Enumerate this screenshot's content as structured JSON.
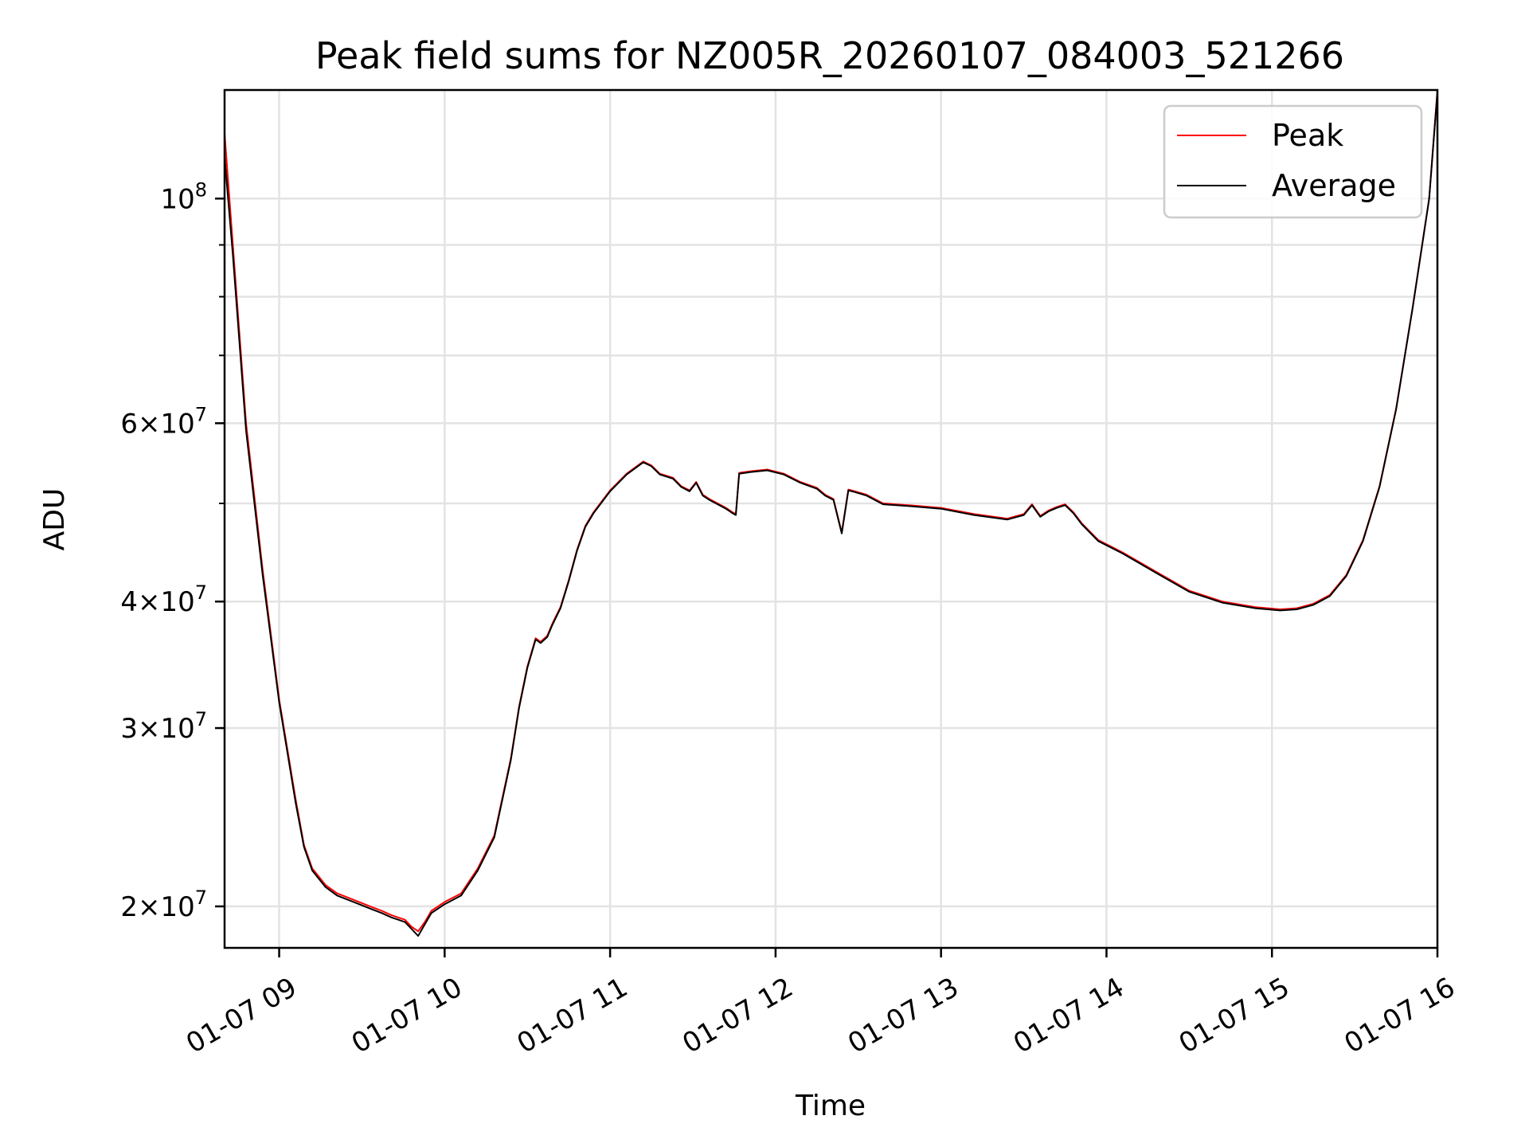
{
  "chart_data": {
    "type": "line",
    "title": "Peak field sums for NZ005R_20260107_084003_521266",
    "xlabel": "Time",
    "ylabel": "ADU",
    "yscale": "log",
    "xlim": [
      8.67,
      16.0
    ],
    "ylim": [
      18200000,
      128000000
    ],
    "grid": true,
    "legend_position": "top-right",
    "x_ticks": [
      {
        "value": 9,
        "label": "01-07 09"
      },
      {
        "value": 10,
        "label": "01-07 10"
      },
      {
        "value": 11,
        "label": "01-07 11"
      },
      {
        "value": 12,
        "label": "01-07 12"
      },
      {
        "value": 13,
        "label": "01-07 13"
      },
      {
        "value": 14,
        "label": "01-07 14"
      },
      {
        "value": 15,
        "label": "01-07 15"
      },
      {
        "value": 16,
        "label": "01-07 16"
      }
    ],
    "y_ticks": [
      {
        "value": 20000000,
        "mantissa": "2",
        "exp": "7"
      },
      {
        "value": 30000000,
        "mantissa": "3",
        "exp": "7"
      },
      {
        "value": 40000000,
        "mantissa": "4",
        "exp": "7"
      },
      {
        "value": 60000000,
        "mantissa": "6",
        "exp": "7"
      },
      {
        "value": 100000000,
        "mantissa": "",
        "exp": "8"
      }
    ],
    "y_minor_ticks": [
      50000000,
      70000000,
      80000000,
      90000000
    ],
    "series": [
      {
        "name": "Peak",
        "color": "#ff0000",
        "x": [
          8.67,
          8.72,
          8.8,
          8.9,
          9.0,
          9.1,
          9.15,
          9.2,
          9.28,
          9.35,
          9.45,
          9.55,
          9.62,
          9.68,
          9.72,
          9.76,
          9.8,
          9.84,
          9.88,
          9.92,
          10.0,
          10.1,
          10.2,
          10.3,
          10.4,
          10.45,
          10.5,
          10.55,
          10.58,
          10.62,
          10.65,
          10.7,
          10.75,
          10.8,
          10.85,
          10.9,
          11.0,
          11.1,
          11.2,
          11.25,
          11.3,
          11.38,
          11.43,
          11.48,
          11.52,
          11.56,
          11.6,
          11.65,
          11.7,
          11.74,
          11.76,
          11.78,
          11.85,
          11.95,
          12.05,
          12.15,
          12.25,
          12.3,
          12.35,
          12.4,
          12.44,
          12.48,
          12.55,
          12.65,
          12.8,
          13.0,
          13.2,
          13.4,
          13.5,
          13.55,
          13.6,
          13.65,
          13.7,
          13.75,
          13.8,
          13.85,
          13.95,
          14.1,
          14.3,
          14.5,
          14.7,
          14.9,
          15.05,
          15.15,
          15.25,
          15.35,
          15.45,
          15.55,
          15.65,
          15.75,
          15.85,
          15.95,
          16.0
        ],
        "y": [
          116000000,
          90000000,
          60000000,
          43000000,
          32000000,
          25500000,
          23000000,
          21800000,
          21000000,
          20600000,
          20300000,
          20000000,
          19800000,
          19600000,
          19500000,
          19400000,
          19100000,
          18900000,
          19300000,
          19800000,
          20200000,
          20600000,
          21800000,
          23500000,
          28000000,
          31500000,
          34500000,
          36800000,
          36500000,
          37000000,
          38000000,
          39500000,
          42000000,
          45000000,
          47500000,
          49000000,
          51500000,
          53500000,
          55000000,
          54500000,
          53500000,
          53000000,
          52000000,
          51500000,
          52500000,
          51000000,
          50500000,
          50000000,
          49500000,
          49000000,
          48800000,
          53600000,
          53800000,
          54000000,
          53500000,
          52500000,
          51800000,
          51000000,
          50500000,
          46800000,
          51600000,
          51400000,
          51000000,
          50000000,
          49800000,
          49500000,
          48800000,
          48300000,
          48800000,
          49900000,
          48600000,
          49200000,
          49600000,
          49900000,
          49000000,
          47800000,
          46000000,
          44700000,
          42800000,
          41000000,
          40000000,
          39500000,
          39300000,
          39400000,
          39800000,
          40600000,
          42500000,
          46000000,
          52000000,
          62000000,
          78000000,
          100000000,
          128000000
        ]
      },
      {
        "name": "Average",
        "color": "#000000",
        "x": [
          8.67,
          8.72,
          8.8,
          8.9,
          9.0,
          9.1,
          9.15,
          9.2,
          9.28,
          9.35,
          9.45,
          9.55,
          9.62,
          9.68,
          9.72,
          9.76,
          9.8,
          9.84,
          9.88,
          9.92,
          10.0,
          10.1,
          10.2,
          10.3,
          10.4,
          10.45,
          10.5,
          10.55,
          10.58,
          10.62,
          10.65,
          10.7,
          10.75,
          10.8,
          10.85,
          10.9,
          11.0,
          11.1,
          11.2,
          11.25,
          11.3,
          11.38,
          11.43,
          11.48,
          11.52,
          11.56,
          11.6,
          11.65,
          11.7,
          11.74,
          11.76,
          11.78,
          11.85,
          11.95,
          12.05,
          12.15,
          12.25,
          12.3,
          12.35,
          12.4,
          12.44,
          12.48,
          12.55,
          12.65,
          12.8,
          13.0,
          13.2,
          13.4,
          13.5,
          13.55,
          13.6,
          13.65,
          13.7,
          13.75,
          13.8,
          13.85,
          13.95,
          14.1,
          14.3,
          14.5,
          14.7,
          14.9,
          15.05,
          15.15,
          15.25,
          15.35,
          15.45,
          15.55,
          15.65,
          15.75,
          15.85,
          15.95,
          16.0
        ],
        "y": [
          110000000,
          88000000,
          59000000,
          42500000,
          31800000,
          25300000,
          22900000,
          21700000,
          20900000,
          20500000,
          20200000,
          19900000,
          19700000,
          19500000,
          19400000,
          19300000,
          19000000,
          18700000,
          19200000,
          19700000,
          20100000,
          20500000,
          21700000,
          23400000,
          27900000,
          31400000,
          34400000,
          36700000,
          36400000,
          36900000,
          37900000,
          39400000,
          41900000,
          44900000,
          47400000,
          48900000,
          51400000,
          53400000,
          54900000,
          54400000,
          53400000,
          52900000,
          51900000,
          51400000,
          52400000,
          50900000,
          50400000,
          49900000,
          49400000,
          48900000,
          48700000,
          53500000,
          53700000,
          53900000,
          53400000,
          52400000,
          51700000,
          50900000,
          50400000,
          46700000,
          51500000,
          51300000,
          50900000,
          49900000,
          49700000,
          49400000,
          48700000,
          48200000,
          48700000,
          49800000,
          48500000,
          49100000,
          49500000,
          49800000,
          48900000,
          47700000,
          45900000,
          44600000,
          42700000,
          40900000,
          39900000,
          39400000,
          39200000,
          39300000,
          39700000,
          40500000,
          42400000,
          45900000,
          51900000,
          61900000,
          77900000,
          99900000,
          127500000
        ]
      }
    ]
  }
}
